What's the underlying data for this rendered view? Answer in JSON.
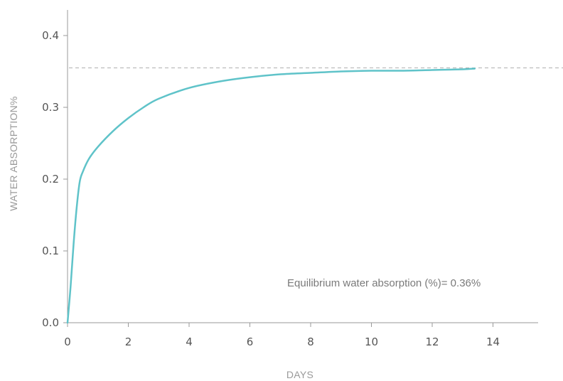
{
  "chart_data": {
    "type": "line",
    "xlabel": "DAYS",
    "ylabel": "WATER ABSORPTION%",
    "xlim": [
      0,
      15.2
    ],
    "ylim": [
      0,
      0.43
    ],
    "x_ticks": [
      "0",
      "2",
      "4",
      "6",
      "8",
      "10",
      "12",
      "14"
    ],
    "y_ticks": [
      "0.0",
      "0.1",
      "0.2",
      "0.3",
      "0.4"
    ],
    "grid": false,
    "series": [
      {
        "color": "#5fc3c9",
        "x": [
          0,
          0.1,
          0.2,
          0.3,
          0.4,
          0.5,
          0.7,
          1,
          1.5,
          2,
          2.5,
          3,
          4,
          5,
          6,
          7,
          8,
          9,
          10,
          11,
          12,
          13,
          13.4
        ],
        "y": [
          0.0,
          0.05,
          0.11,
          0.16,
          0.196,
          0.21,
          0.228,
          0.245,
          0.267,
          0.285,
          0.3,
          0.312,
          0.327,
          0.336,
          0.342,
          0.346,
          0.348,
          0.35,
          0.351,
          0.351,
          0.352,
          0.353,
          0.354
        ]
      }
    ],
    "reference_line": {
      "y": 0.355,
      "style": "dashed",
      "color": "#b0b0b0"
    },
    "annotation": "Equilibrium water absorption (%)= 0.36%",
    "colors": {
      "axis": "#9a9a9a",
      "tick_text": "#555555",
      "line": "#5fc3c9"
    }
  }
}
